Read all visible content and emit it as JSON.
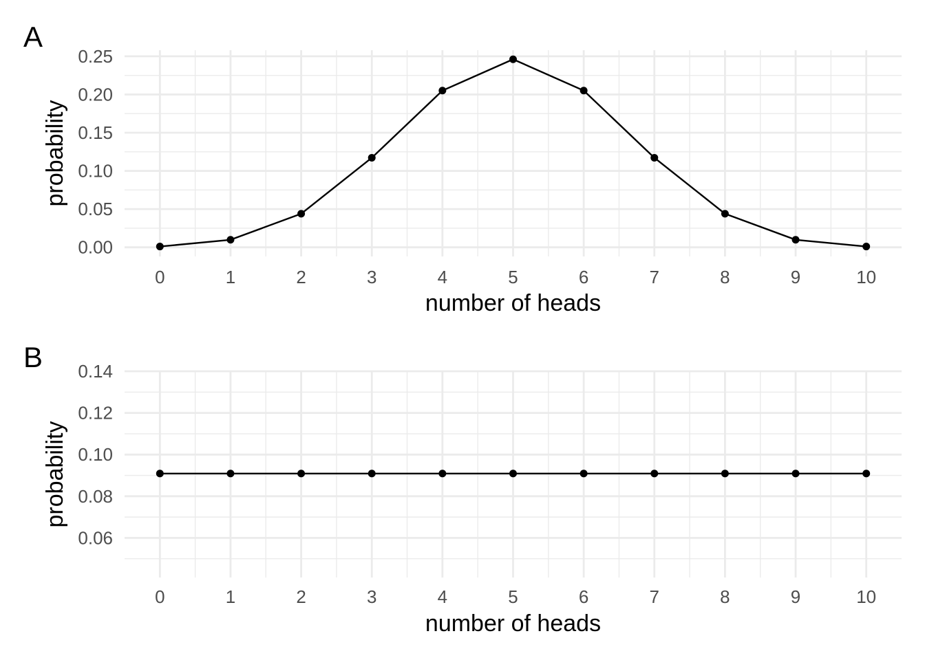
{
  "chart_data": [
    {
      "type": "line",
      "panel_label": "A",
      "xlabel": "number of heads",
      "ylabel": "probability",
      "x": [
        0,
        1,
        2,
        3,
        4,
        5,
        6,
        7,
        8,
        9,
        10
      ],
      "y": [
        0.001,
        0.0098,
        0.0439,
        0.1172,
        0.2051,
        0.2461,
        0.2051,
        0.1172,
        0.0439,
        0.0098,
        0.001
      ],
      "xlim": [
        -0.5,
        10.5
      ],
      "ylim": [
        -0.012,
        0.258
      ],
      "xticks": [
        "0",
        "1",
        "2",
        "3",
        "4",
        "5",
        "6",
        "7",
        "8",
        "9",
        "10"
      ],
      "yticks": [
        "0.00",
        "0.05",
        "0.10",
        "0.15",
        "0.20",
        "0.25"
      ],
      "grid": true,
      "markers": true,
      "line_color": "#000000"
    },
    {
      "type": "line",
      "panel_label": "B",
      "xlabel": "number of heads",
      "ylabel": "probability",
      "x": [
        0,
        1,
        2,
        3,
        4,
        5,
        6,
        7,
        8,
        9,
        10
      ],
      "y": [
        0.0909,
        0.0909,
        0.0909,
        0.0909,
        0.0909,
        0.0909,
        0.0909,
        0.0909,
        0.0909,
        0.0909,
        0.0909
      ],
      "xlim": [
        -0.5,
        10.5
      ],
      "ylim": [
        0.041,
        0.14
      ],
      "xticks": [
        "0",
        "1",
        "2",
        "3",
        "4",
        "5",
        "6",
        "7",
        "8",
        "9",
        "10"
      ],
      "yticks": [
        "0.06",
        "0.08",
        "0.10",
        "0.12",
        "0.14"
      ],
      "grid": true,
      "markers": true,
      "line_color": "#000000"
    }
  ],
  "colors": {
    "background": "#ffffff",
    "grid_major": "#ebebeb",
    "grid_minor": "#ebebeb",
    "tick_text": "#4d4d4d",
    "title_text": "#000000"
  }
}
